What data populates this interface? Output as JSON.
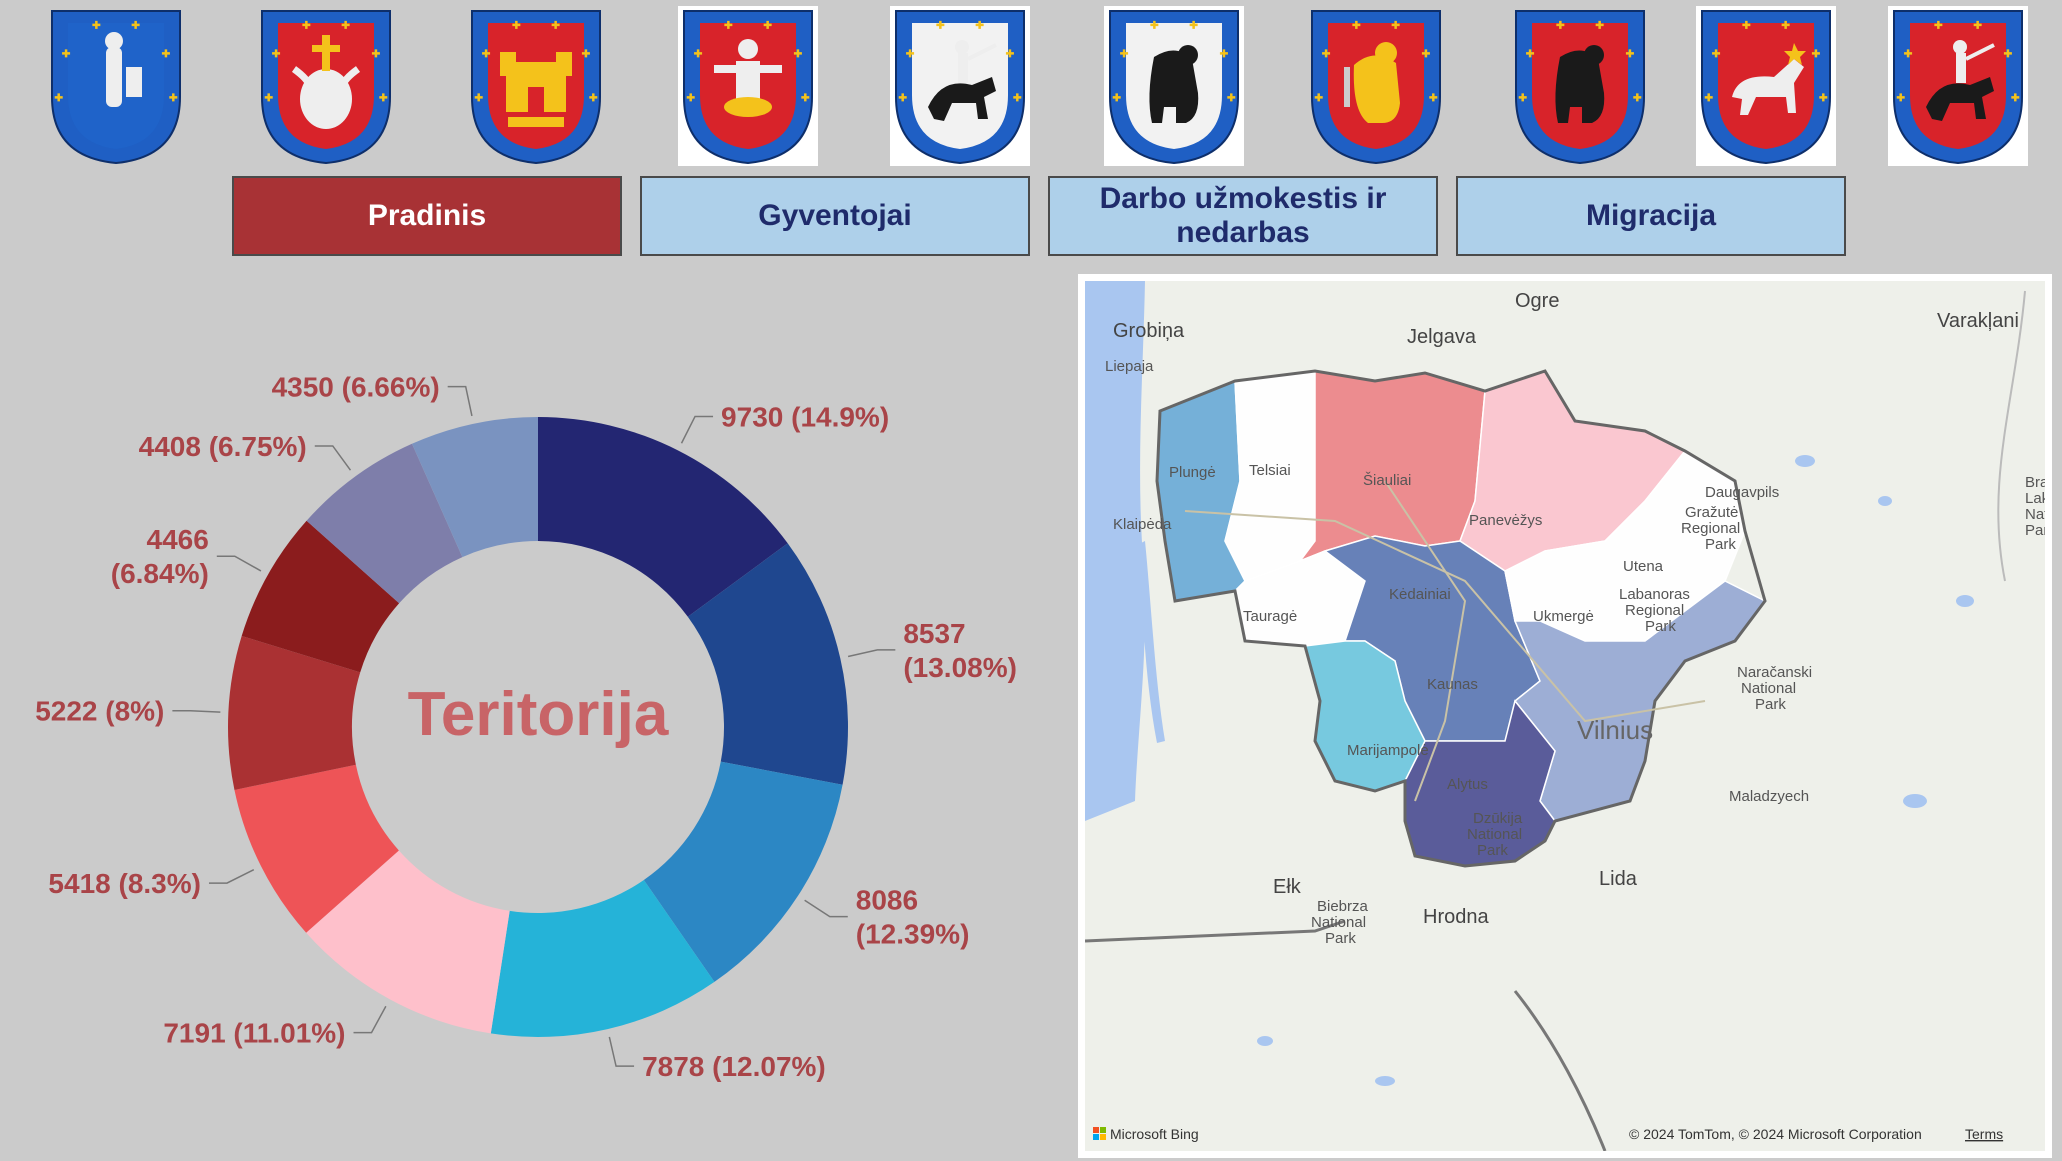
{
  "crests": [
    {
      "name": "crest-1-knight-icon",
      "bg": "transparent",
      "field": "#1f63c9",
      "charge": "knight"
    },
    {
      "name": "crest-2-bull-icon",
      "bg": "transparent",
      "field": "#d8232a",
      "charge": "bull"
    },
    {
      "name": "crest-3-castle-icon",
      "bg": "transparent",
      "field": "#d8232a",
      "charge": "castle"
    },
    {
      "name": "crest-4-man-icon",
      "bg": "#ffffff",
      "field": "#d8232a",
      "charge": "man"
    },
    {
      "name": "crest-5-rider-icon",
      "bg": "#ffffff",
      "field": "#f2f2f2",
      "charge": "rider"
    },
    {
      "name": "crest-6-bear-icon",
      "bg": "#ffffff",
      "field": "#f2f2f2",
      "charge": "bear"
    },
    {
      "name": "crest-7-lion-icon",
      "bg": "transparent",
      "field": "#d8232a",
      "charge": "lion"
    },
    {
      "name": "crest-8-bear-icon",
      "bg": "transparent",
      "field": "#d8232a",
      "charge": "bear"
    },
    {
      "name": "crest-9-horse-icon",
      "bg": "#ffffff",
      "field": "#d8232a",
      "charge": "horse"
    },
    {
      "name": "crest-10-vytis-icon",
      "bg": "#ffffff",
      "field": "#d8232a",
      "charge": "rider"
    }
  ],
  "nav": {
    "pradinis": "Pradinis",
    "gyventojai": "Gyventojai",
    "darbo_line1": "Darbo užmokestis ir",
    "darbo_line2": "nedarbas",
    "migracija": "Migracija"
  },
  "chart_data": {
    "type": "pie",
    "donut": true,
    "center_text": "Teritorija",
    "slices": [
      {
        "value": 9730,
        "label": "9730 (14.9%)",
        "color": "#232672"
      },
      {
        "value": 8537,
        "label": [
          "8537",
          "(13.08%)"
        ],
        "color": "#1f478f"
      },
      {
        "value": 8086,
        "label": [
          "8086",
          "(12.39%)"
        ],
        "color": "#2c87c4"
      },
      {
        "value": 7878,
        "label": "7878 (12.07%)",
        "color": "#25b3d8"
      },
      {
        "value": 7191,
        "label": "7191 (11.01%)",
        "color": "#fec0cb"
      },
      {
        "value": 5418,
        "label": "5418 (8.3%)",
        "color": "#ee5457"
      },
      {
        "value": 5222,
        "label": "5222 (8%)",
        "color": "#aa3133"
      },
      {
        "value": 4466,
        "label": [
          "4466",
          "(6.84%)"
        ],
        "color": "#8b1c1d"
      },
      {
        "value": 4408,
        "label": "4408 (6.75%)",
        "color": "#7e7eaa"
      },
      {
        "value": 4350,
        "label": "4350 (6.66%)",
        "color": "#7a93c0"
      }
    ]
  },
  "map": {
    "cities": {
      "grobina": "Grobiņa",
      "liepaja": "Liepaja",
      "jelgava": "Jelgava",
      "ogre": "Ogre",
      "varaklani": "Varakļani",
      "plunge": "Plungė",
      "telsiai": "Telsiai",
      "siauliai": "Šiauliai",
      "panevezys": "Panevėžys",
      "daugavpils": "Daugavpils",
      "klaipeda": "Klaipėda",
      "utena": "Utena",
      "kedainiai": "Kėdainiai",
      "taurage": "Tauragė",
      "ukmerge": "Ukmergė",
      "kaunas": "Kaunas",
      "vilnius": "Vilnius",
      "marijampole": "Marijampolė",
      "alytus": "Alytus",
      "maladzyech": "Maladzyech",
      "elk": "Ełk",
      "lida": "Lida",
      "hrodna": "Hrodna"
    },
    "parks": {
      "grazute": [
        "Gražutė",
        "Regional",
        "Park"
      ],
      "labanoras": [
        "Labanoras",
        "Regional",
        "Park"
      ],
      "naracanski": [
        "Naračanski",
        "National",
        "Park"
      ],
      "dzukija": [
        "Dzūkija",
        "National",
        "Park"
      ],
      "biebrza": [
        "Biebrza",
        "National",
        "Park"
      ],
      "bras": [
        "Bras",
        "Lak",
        "Natic",
        "Park"
      ]
    },
    "brand": "Microsoft Bing",
    "copyright": "© 2024 TomTom, © 2024 Microsoft Corporation",
    "terms": "Terms",
    "region_colors": {
      "klaipeda": "#6aaad6",
      "telsiai": "#ffffff",
      "siauliai": "#ec8387",
      "panevezys": "#fbc3cd",
      "taurage": "#ffffff",
      "kaunas": "#5b77b3",
      "utena": "#ffffff",
      "vilnius": "#96a8d2",
      "marijampole": "#6cc6dd",
      "alytus": "#4d4f93"
    }
  }
}
